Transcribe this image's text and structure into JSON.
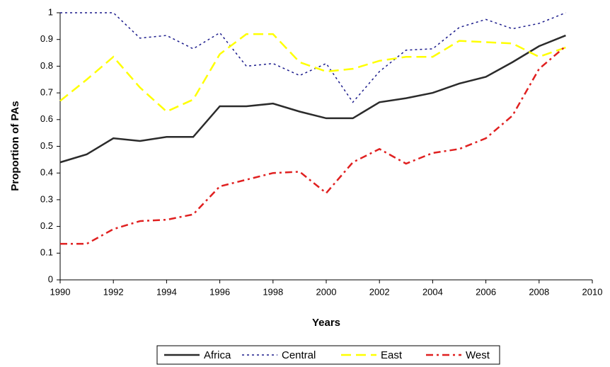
{
  "chart_data": {
    "type": "line",
    "x_label": "Years",
    "y_label": "Proportion of PAs",
    "x": [
      1990,
      1991,
      1992,
      1993,
      1994,
      1995,
      1996,
      1997,
      1998,
      1999,
      2000,
      2001,
      2002,
      2003,
      2004,
      2005,
      2006,
      2007,
      2008,
      2009
    ],
    "series": [
      {
        "name": "Africa",
        "color": "#2b2b2b",
        "style": "solid",
        "values": [
          0.44,
          0.47,
          0.53,
          0.52,
          0.535,
          0.535,
          0.65,
          0.65,
          0.66,
          0.63,
          0.605,
          0.605,
          0.665,
          0.68,
          0.7,
          0.735,
          0.76,
          0.815,
          0.875,
          0.915
        ]
      },
      {
        "name": "Central",
        "color": "#1c1c8c",
        "style": "dotted",
        "values": [
          1.0,
          1.0,
          1.0,
          0.905,
          0.915,
          0.865,
          0.925,
          0.8,
          0.81,
          0.765,
          0.81,
          0.665,
          0.78,
          0.86,
          0.865,
          0.945,
          0.975,
          0.94,
          0.96,
          1.0
        ]
      },
      {
        "name": "East",
        "color": "#ffff00",
        "style": "dashed",
        "values": [
          0.67,
          0.75,
          0.835,
          0.72,
          0.63,
          0.675,
          0.845,
          0.92,
          0.92,
          0.815,
          0.78,
          0.79,
          0.82,
          0.835,
          0.835,
          0.895,
          0.89,
          0.885,
          0.835,
          0.87
        ]
      },
      {
        "name": "West",
        "color": "#e02020",
        "style": "dashdot",
        "values": [
          0.135,
          0.135,
          0.19,
          0.22,
          0.225,
          0.245,
          0.35,
          0.375,
          0.4,
          0.405,
          0.325,
          0.44,
          0.49,
          0.435,
          0.475,
          0.49,
          0.53,
          0.615,
          0.79,
          0.875
        ]
      }
    ],
    "xlim": [
      1990,
      2010
    ],
    "xticks": [
      1990,
      1992,
      1994,
      1996,
      1998,
      2000,
      2002,
      2004,
      2006,
      2008,
      2010
    ],
    "ylim": [
      0,
      1
    ],
    "yticks": [
      0,
      0.1,
      0.2,
      0.3,
      0.4,
      0.5,
      0.6,
      0.7,
      0.8,
      0.9,
      1
    ],
    "grid": false,
    "legend": "bottom"
  }
}
